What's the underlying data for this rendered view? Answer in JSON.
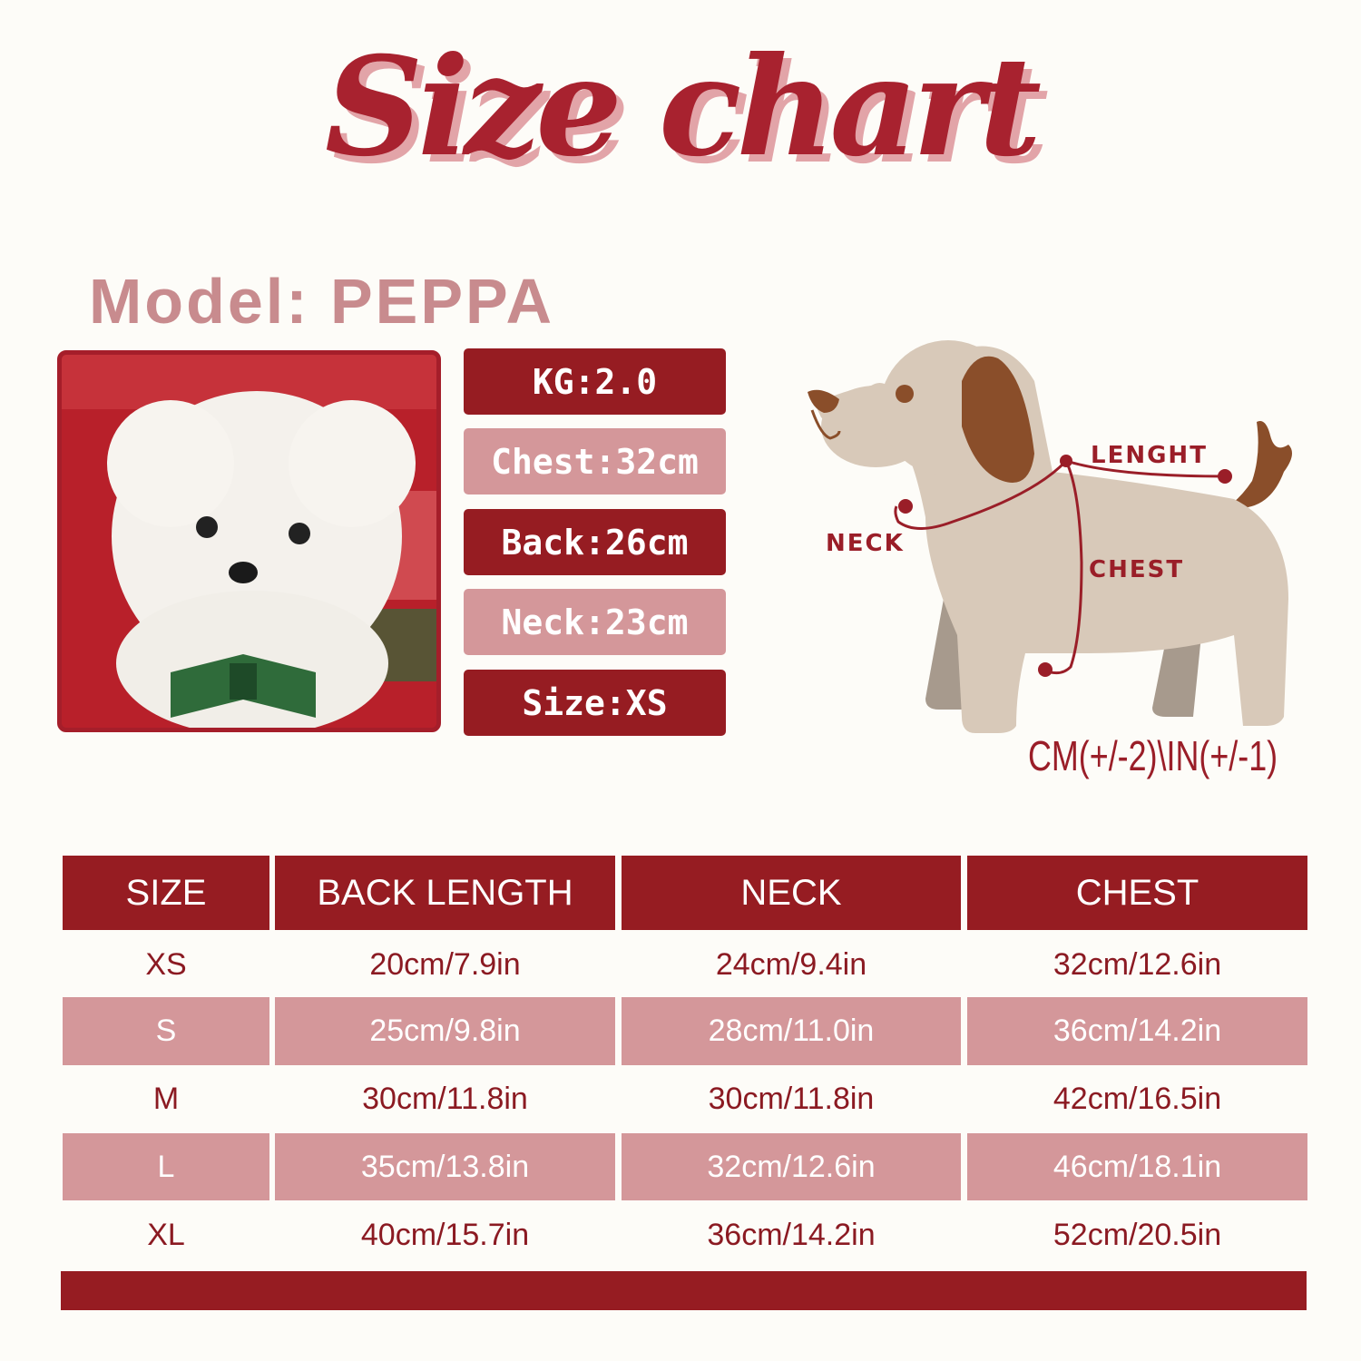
{
  "title": "Size chart",
  "model": "Model: PEPPA",
  "model_stats": [
    "KG:2.0",
    "Chest:32cm",
    "Back:26cm",
    "Neck:23cm",
    "Size:XS"
  ],
  "diagram": {
    "labels": {
      "length": "LENGHT",
      "neck": "NECK",
      "chest": "CHEST"
    },
    "tolerance": "CM(+/-2)\\IN(+/-1)"
  },
  "table": {
    "headers": [
      "SIZE",
      "BACK LENGTH",
      "NECK",
      "CHEST"
    ],
    "rows": [
      [
        "XS",
        "20cm/7.9in",
        "24cm/9.4in",
        "32cm/12.6in"
      ],
      [
        "S",
        "25cm/9.8in",
        "28cm/11.0in",
        "36cm/14.2in"
      ],
      [
        "M",
        "30cm/11.8in",
        "30cm/11.8in",
        "42cm/16.5in"
      ],
      [
        "L",
        "35cm/13.8in",
        "32cm/12.6in",
        "46cm/18.1in"
      ],
      [
        "XL",
        "40cm/15.7in",
        "36cm/14.2in",
        "52cm/20.5in"
      ]
    ]
  },
  "colors": {
    "dark_red": "#961c22",
    "pink": "#d4979a",
    "text_red": "#8b1a22",
    "background": "#fdfcf8"
  }
}
